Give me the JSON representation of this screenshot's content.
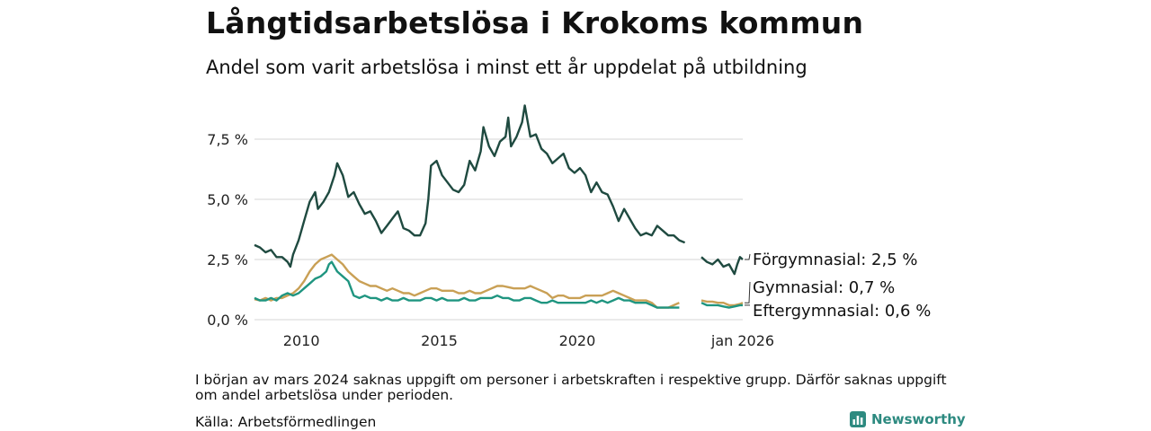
{
  "title": "Långtidsarbetslösa i Krokoms kommun",
  "subtitle": "Andel som varit arbetslösa i minst ett år uppdelat på utbildning",
  "note": "I början av mars 2024 saknas uppgift om personer i arbetskraften i respektive grupp. Därför saknas uppgift om andel arbetslösa under perioden.",
  "source": "Källa: Arbetsförmedlingen",
  "brand": {
    "name": "Newsworthy",
    "icon": "bar-chart-icon"
  },
  "colors": {
    "forgymnasial": "#1f4a40",
    "gymnasial": "#c9a055",
    "eftergymnasial": "#1f9580",
    "grid": "#dddddd"
  },
  "chart_data": {
    "type": "line",
    "title": "Långtidsarbetslösa i Krokoms kommun",
    "xlabel": "",
    "ylabel": "",
    "xlim": [
      2008.3,
      2026.0
    ],
    "ylim": [
      0,
      9
    ],
    "x_ticks": [
      {
        "value": 2010,
        "label": "2010"
      },
      {
        "value": 2015,
        "label": "2015"
      },
      {
        "value": 2020,
        "label": "2020"
      },
      {
        "value": 2026.0,
        "label": "jan 2026"
      }
    ],
    "y_ticks": [
      {
        "value": 0,
        "label": "0,0 %"
      },
      {
        "value": 2.5,
        "label": "2,5 %"
      },
      {
        "value": 5.0,
        "label": "5,0 %"
      },
      {
        "value": 7.5,
        "label": "7,5 %"
      }
    ],
    "gap": [
      2024.0,
      2024.5
    ],
    "series": [
      {
        "name": "Förgymnasial",
        "end_label": "Förgymnasial: 2,5 %",
        "points": [
          [
            2008.3,
            3.1
          ],
          [
            2008.5,
            3.0
          ],
          [
            2008.7,
            2.8
          ],
          [
            2008.9,
            2.9
          ],
          [
            2009.1,
            2.6
          ],
          [
            2009.3,
            2.6
          ],
          [
            2009.5,
            2.4
          ],
          [
            2009.6,
            2.2
          ],
          [
            2009.7,
            2.7
          ],
          [
            2009.9,
            3.3
          ],
          [
            2010.1,
            4.1
          ],
          [
            2010.3,
            4.9
          ],
          [
            2010.5,
            5.3
          ],
          [
            2010.6,
            4.6
          ],
          [
            2010.8,
            4.9
          ],
          [
            2011.0,
            5.3
          ],
          [
            2011.2,
            6.0
          ],
          [
            2011.3,
            6.5
          ],
          [
            2011.5,
            6.0
          ],
          [
            2011.7,
            5.1
          ],
          [
            2011.9,
            5.3
          ],
          [
            2012.1,
            4.8
          ],
          [
            2012.3,
            4.4
          ],
          [
            2012.5,
            4.5
          ],
          [
            2012.7,
            4.1
          ],
          [
            2012.9,
            3.6
          ],
          [
            2013.1,
            3.9
          ],
          [
            2013.3,
            4.2
          ],
          [
            2013.5,
            4.5
          ],
          [
            2013.7,
            3.8
          ],
          [
            2013.9,
            3.7
          ],
          [
            2014.1,
            3.5
          ],
          [
            2014.3,
            3.5
          ],
          [
            2014.5,
            4.0
          ],
          [
            2014.6,
            5.0
          ],
          [
            2014.7,
            6.4
          ],
          [
            2014.9,
            6.6
          ],
          [
            2015.1,
            6.0
          ],
          [
            2015.3,
            5.7
          ],
          [
            2015.5,
            5.4
          ],
          [
            2015.7,
            5.3
          ],
          [
            2015.9,
            5.6
          ],
          [
            2016.1,
            6.6
          ],
          [
            2016.3,
            6.2
          ],
          [
            2016.5,
            7.0
          ],
          [
            2016.6,
            8.0
          ],
          [
            2016.8,
            7.2
          ],
          [
            2017.0,
            6.8
          ],
          [
            2017.2,
            7.4
          ],
          [
            2017.4,
            7.6
          ],
          [
            2017.5,
            8.4
          ],
          [
            2017.6,
            7.2
          ],
          [
            2017.8,
            7.6
          ],
          [
            2018.0,
            8.2
          ],
          [
            2018.1,
            8.9
          ],
          [
            2018.3,
            7.6
          ],
          [
            2018.5,
            7.7
          ],
          [
            2018.7,
            7.1
          ],
          [
            2018.9,
            6.9
          ],
          [
            2019.1,
            6.5
          ],
          [
            2019.3,
            6.7
          ],
          [
            2019.5,
            6.9
          ],
          [
            2019.7,
            6.3
          ],
          [
            2019.9,
            6.1
          ],
          [
            2020.1,
            6.3
          ],
          [
            2020.3,
            6.0
          ],
          [
            2020.5,
            5.3
          ],
          [
            2020.7,
            5.7
          ],
          [
            2020.9,
            5.3
          ],
          [
            2021.1,
            5.2
          ],
          [
            2021.3,
            4.7
          ],
          [
            2021.5,
            4.1
          ],
          [
            2021.7,
            4.6
          ],
          [
            2021.9,
            4.2
          ],
          [
            2022.1,
            3.8
          ],
          [
            2022.3,
            3.5
          ],
          [
            2022.5,
            3.6
          ],
          [
            2022.7,
            3.5
          ],
          [
            2022.9,
            3.9
          ],
          [
            2023.1,
            3.7
          ],
          [
            2023.3,
            3.5
          ],
          [
            2023.5,
            3.5
          ],
          [
            2023.7,
            3.3
          ],
          [
            2023.9,
            3.2
          ]
        ],
        "points_after": [
          [
            2024.5,
            2.6
          ],
          [
            2024.7,
            2.4
          ],
          [
            2024.9,
            2.3
          ],
          [
            2025.1,
            2.5
          ],
          [
            2025.3,
            2.2
          ],
          [
            2025.5,
            2.3
          ],
          [
            2025.7,
            1.9
          ],
          [
            2025.8,
            2.3
          ],
          [
            2025.9,
            2.6
          ],
          [
            2026.0,
            2.5
          ]
        ]
      },
      {
        "name": "Gymnasial",
        "end_label": "Gymnasial: 0,7 %",
        "points": [
          [
            2008.3,
            0.85
          ],
          [
            2008.5,
            0.8
          ],
          [
            2008.7,
            0.9
          ],
          [
            2008.9,
            0.8
          ],
          [
            2009.1,
            0.9
          ],
          [
            2009.3,
            0.9
          ],
          [
            2009.5,
            1.0
          ],
          [
            2009.7,
            1.1
          ],
          [
            2009.9,
            1.3
          ],
          [
            2010.1,
            1.6
          ],
          [
            2010.3,
            2.0
          ],
          [
            2010.5,
            2.3
          ],
          [
            2010.7,
            2.5
          ],
          [
            2010.9,
            2.6
          ],
          [
            2011.1,
            2.7
          ],
          [
            2011.3,
            2.5
          ],
          [
            2011.5,
            2.3
          ],
          [
            2011.7,
            2.0
          ],
          [
            2011.9,
            1.8
          ],
          [
            2012.1,
            1.6
          ],
          [
            2012.3,
            1.5
          ],
          [
            2012.5,
            1.4
          ],
          [
            2012.7,
            1.4
          ],
          [
            2012.9,
            1.3
          ],
          [
            2013.1,
            1.2
          ],
          [
            2013.3,
            1.3
          ],
          [
            2013.5,
            1.2
          ],
          [
            2013.7,
            1.1
          ],
          [
            2013.9,
            1.1
          ],
          [
            2014.1,
            1.0
          ],
          [
            2014.3,
            1.1
          ],
          [
            2014.5,
            1.2
          ],
          [
            2014.7,
            1.3
          ],
          [
            2014.9,
            1.3
          ],
          [
            2015.1,
            1.2
          ],
          [
            2015.3,
            1.2
          ],
          [
            2015.5,
            1.2
          ],
          [
            2015.7,
            1.1
          ],
          [
            2015.9,
            1.1
          ],
          [
            2016.1,
            1.2
          ],
          [
            2016.3,
            1.1
          ],
          [
            2016.5,
            1.1
          ],
          [
            2016.7,
            1.2
          ],
          [
            2016.9,
            1.3
          ],
          [
            2017.1,
            1.4
          ],
          [
            2017.3,
            1.4
          ],
          [
            2017.5,
            1.35
          ],
          [
            2017.7,
            1.3
          ],
          [
            2017.9,
            1.3
          ],
          [
            2018.1,
            1.3
          ],
          [
            2018.3,
            1.4
          ],
          [
            2018.5,
            1.3
          ],
          [
            2018.7,
            1.2
          ],
          [
            2018.9,
            1.1
          ],
          [
            2019.1,
            0.9
          ],
          [
            2019.3,
            1.0
          ],
          [
            2019.5,
            1.0
          ],
          [
            2019.7,
            0.9
          ],
          [
            2019.9,
            0.9
          ],
          [
            2020.1,
            0.9
          ],
          [
            2020.3,
            1.0
          ],
          [
            2020.5,
            1.0
          ],
          [
            2020.7,
            1.0
          ],
          [
            2020.9,
            1.0
          ],
          [
            2021.1,
            1.1
          ],
          [
            2021.3,
            1.2
          ],
          [
            2021.5,
            1.1
          ],
          [
            2021.7,
            1.0
          ],
          [
            2021.9,
            0.9
          ],
          [
            2022.1,
            0.8
          ],
          [
            2022.3,
            0.8
          ],
          [
            2022.5,
            0.8
          ],
          [
            2022.7,
            0.7
          ],
          [
            2022.9,
            0.5
          ],
          [
            2023.1,
            0.5
          ],
          [
            2023.3,
            0.5
          ],
          [
            2023.5,
            0.6
          ],
          [
            2023.7,
            0.7
          ]
        ],
        "points_after": [
          [
            2024.5,
            0.8
          ],
          [
            2024.7,
            0.75
          ],
          [
            2024.9,
            0.75
          ],
          [
            2025.1,
            0.7
          ],
          [
            2025.3,
            0.7
          ],
          [
            2025.5,
            0.6
          ],
          [
            2025.7,
            0.6
          ],
          [
            2025.9,
            0.65
          ],
          [
            2026.0,
            0.7
          ]
        ]
      },
      {
        "name": "Eftergymnasial",
        "end_label": "Eftergymnasial: 0,6 %",
        "points": [
          [
            2008.3,
            0.9
          ],
          [
            2008.5,
            0.8
          ],
          [
            2008.7,
            0.8
          ],
          [
            2008.9,
            0.9
          ],
          [
            2009.1,
            0.8
          ],
          [
            2009.3,
            1.0
          ],
          [
            2009.5,
            1.1
          ],
          [
            2009.7,
            1.0
          ],
          [
            2009.9,
            1.1
          ],
          [
            2010.1,
            1.3
          ],
          [
            2010.3,
            1.5
          ],
          [
            2010.5,
            1.7
          ],
          [
            2010.7,
            1.8
          ],
          [
            2010.9,
            2.0
          ],
          [
            2011.0,
            2.3
          ],
          [
            2011.1,
            2.4
          ],
          [
            2011.3,
            2.0
          ],
          [
            2011.5,
            1.8
          ],
          [
            2011.7,
            1.6
          ],
          [
            2011.9,
            1.0
          ],
          [
            2012.1,
            0.9
          ],
          [
            2012.3,
            1.0
          ],
          [
            2012.5,
            0.9
          ],
          [
            2012.7,
            0.9
          ],
          [
            2012.9,
            0.8
          ],
          [
            2013.1,
            0.9
          ],
          [
            2013.3,
            0.8
          ],
          [
            2013.5,
            0.8
          ],
          [
            2013.7,
            0.9
          ],
          [
            2013.9,
            0.8
          ],
          [
            2014.1,
            0.8
          ],
          [
            2014.3,
            0.8
          ],
          [
            2014.5,
            0.9
          ],
          [
            2014.7,
            0.9
          ],
          [
            2014.9,
            0.8
          ],
          [
            2015.1,
            0.9
          ],
          [
            2015.3,
            0.8
          ],
          [
            2015.5,
            0.8
          ],
          [
            2015.7,
            0.8
          ],
          [
            2015.9,
            0.9
          ],
          [
            2016.1,
            0.8
          ],
          [
            2016.3,
            0.8
          ],
          [
            2016.5,
            0.9
          ],
          [
            2016.7,
            0.9
          ],
          [
            2016.9,
            0.9
          ],
          [
            2017.1,
            1.0
          ],
          [
            2017.3,
            0.9
          ],
          [
            2017.5,
            0.9
          ],
          [
            2017.7,
            0.8
          ],
          [
            2017.9,
            0.8
          ],
          [
            2018.1,
            0.9
          ],
          [
            2018.3,
            0.9
          ],
          [
            2018.5,
            0.8
          ],
          [
            2018.7,
            0.7
          ],
          [
            2018.9,
            0.7
          ],
          [
            2019.1,
            0.8
          ],
          [
            2019.3,
            0.7
          ],
          [
            2019.5,
            0.7
          ],
          [
            2019.7,
            0.7
          ],
          [
            2019.9,
            0.7
          ],
          [
            2020.1,
            0.7
          ],
          [
            2020.3,
            0.7
          ],
          [
            2020.5,
            0.8
          ],
          [
            2020.7,
            0.7
          ],
          [
            2020.9,
            0.8
          ],
          [
            2021.1,
            0.7
          ],
          [
            2021.3,
            0.8
          ],
          [
            2021.5,
            0.9
          ],
          [
            2021.7,
            0.8
          ],
          [
            2021.9,
            0.8
          ],
          [
            2022.1,
            0.7
          ],
          [
            2022.3,
            0.7
          ],
          [
            2022.5,
            0.7
          ],
          [
            2022.7,
            0.6
          ],
          [
            2022.9,
            0.5
          ],
          [
            2023.1,
            0.5
          ],
          [
            2023.3,
            0.5
          ],
          [
            2023.5,
            0.5
          ],
          [
            2023.7,
            0.5
          ]
        ],
        "points_after": [
          [
            2024.5,
            0.7
          ],
          [
            2024.7,
            0.6
          ],
          [
            2024.9,
            0.6
          ],
          [
            2025.1,
            0.6
          ],
          [
            2025.3,
            0.55
          ],
          [
            2025.5,
            0.5
          ],
          [
            2025.7,
            0.55
          ],
          [
            2025.9,
            0.6
          ],
          [
            2026.0,
            0.6
          ]
        ]
      }
    ]
  }
}
